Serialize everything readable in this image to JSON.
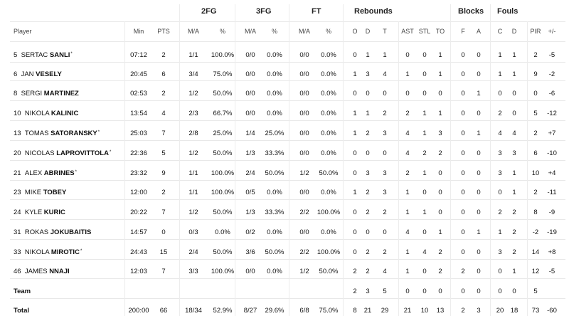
{
  "groups": [
    {
      "id": "2fg",
      "label": "2FG"
    },
    {
      "id": "3fg",
      "label": "3FG"
    },
    {
      "id": "ft",
      "label": "FT"
    },
    {
      "id": "reb",
      "label": "Rebounds"
    },
    {
      "id": "blk",
      "label": "Blocks"
    },
    {
      "id": "fouls",
      "label": "Fouls"
    }
  ],
  "columns": [
    {
      "id": "player",
      "label": "Player"
    },
    {
      "id": "min",
      "label": "Min"
    },
    {
      "id": "pts",
      "label": "PTS"
    },
    {
      "id": "fg2ma",
      "label": "M/A"
    },
    {
      "id": "fg2pct",
      "label": "%"
    },
    {
      "id": "fg3ma",
      "label": "M/A"
    },
    {
      "id": "fg3pct",
      "label": "%"
    },
    {
      "id": "ftma",
      "label": "M/A"
    },
    {
      "id": "ftpct",
      "label": "%"
    },
    {
      "id": "o",
      "label": "O"
    },
    {
      "id": "d",
      "label": "D"
    },
    {
      "id": "t",
      "label": "T"
    },
    {
      "id": "ast",
      "label": "AST"
    },
    {
      "id": "stl",
      "label": "STL"
    },
    {
      "id": "to",
      "label": "TO"
    },
    {
      "id": "bf",
      "label": "F"
    },
    {
      "id": "ba",
      "label": "A"
    },
    {
      "id": "fc",
      "label": "C"
    },
    {
      "id": "fd",
      "label": "D"
    },
    {
      "id": "pir",
      "label": "PIR"
    },
    {
      "id": "pm",
      "label": "+/-"
    }
  ],
  "players": [
    {
      "num": "5",
      "first": "SERTAC",
      "last": "SANLI",
      "starter": "*",
      "cells": [
        "07:12",
        "2",
        "1/1",
        "100.0%",
        "0/0",
        "0.0%",
        "0/0",
        "0.0%",
        "0",
        "1",
        "1",
        "0",
        "0",
        "1",
        "0",
        "0",
        "1",
        "1",
        "2",
        "-5"
      ]
    },
    {
      "num": "6",
      "first": "JAN",
      "last": "VESELY",
      "starter": "",
      "cells": [
        "20:45",
        "6",
        "3/4",
        "75.0%",
        "0/0",
        "0.0%",
        "0/0",
        "0.0%",
        "1",
        "3",
        "4",
        "1",
        "0",
        "1",
        "0",
        "0",
        "1",
        "1",
        "9",
        "-2"
      ]
    },
    {
      "num": "8",
      "first": "SERGI",
      "last": "MARTINEZ",
      "starter": "",
      "cells": [
        "02:53",
        "2",
        "1/2",
        "50.0%",
        "0/0",
        "0.0%",
        "0/0",
        "0.0%",
        "0",
        "0",
        "0",
        "0",
        "0",
        "0",
        "0",
        "1",
        "0",
        "0",
        "0",
        "-6"
      ]
    },
    {
      "num": "10",
      "first": "NIKOLA",
      "last": "KALINIC",
      "starter": "",
      "cells": [
        "13:54",
        "4",
        "2/3",
        "66.7%",
        "0/0",
        "0.0%",
        "0/0",
        "0.0%",
        "1",
        "1",
        "2",
        "2",
        "1",
        "1",
        "0",
        "0",
        "2",
        "0",
        "5",
        "-12"
      ]
    },
    {
      "num": "13",
      "first": "TOMAS",
      "last": "SATORANSKY",
      "starter": "*",
      "cells": [
        "25:03",
        "7",
        "2/8",
        "25.0%",
        "1/4",
        "25.0%",
        "0/0",
        "0.0%",
        "1",
        "2",
        "3",
        "4",
        "1",
        "3",
        "0",
        "1",
        "4",
        "4",
        "2",
        "+7"
      ]
    },
    {
      "num": "20",
      "first": "NICOLAS",
      "last": "LAPROVITTOLA",
      "starter": "*",
      "cells": [
        "22:36",
        "5",
        "1/2",
        "50.0%",
        "1/3",
        "33.3%",
        "0/0",
        "0.0%",
        "0",
        "0",
        "0",
        "4",
        "2",
        "2",
        "0",
        "0",
        "3",
        "3",
        "6",
        "-10"
      ]
    },
    {
      "num": "21",
      "first": "ALEX",
      "last": "ABRINES",
      "starter": "*",
      "cells": [
        "23:32",
        "9",
        "1/1",
        "100.0%",
        "2/4",
        "50.0%",
        "1/2",
        "50.0%",
        "0",
        "3",
        "3",
        "2",
        "1",
        "0",
        "0",
        "0",
        "3",
        "1",
        "10",
        "+4"
      ]
    },
    {
      "num": "23",
      "first": "MIKE",
      "last": "TOBEY",
      "starter": "",
      "cells": [
        "12:00",
        "2",
        "1/1",
        "100.0%",
        "0/5",
        "0.0%",
        "0/0",
        "0.0%",
        "1",
        "2",
        "3",
        "1",
        "0",
        "0",
        "0",
        "0",
        "0",
        "1",
        "2",
        "-11"
      ]
    },
    {
      "num": "24",
      "first": "KYLE",
      "last": "KURIC",
      "starter": "",
      "cells": [
        "20:22",
        "7",
        "1/2",
        "50.0%",
        "1/3",
        "33.3%",
        "2/2",
        "100.0%",
        "0",
        "2",
        "2",
        "1",
        "1",
        "0",
        "0",
        "0",
        "2",
        "2",
        "8",
        "-9"
      ]
    },
    {
      "num": "31",
      "first": "ROKAS",
      "last": "JOKUBAITIS",
      "starter": "",
      "cells": [
        "14:57",
        "0",
        "0/3",
        "0.0%",
        "0/2",
        "0.0%",
        "0/0",
        "0.0%",
        "0",
        "0",
        "0",
        "4",
        "0",
        "1",
        "0",
        "1",
        "1",
        "2",
        "-2",
        "-19"
      ]
    },
    {
      "num": "33",
      "first": "NIKOLA",
      "last": "MIROTIC",
      "starter": "*",
      "cells": [
        "24:43",
        "15",
        "2/4",
        "50.0%",
        "3/6",
        "50.0%",
        "2/2",
        "100.0%",
        "0",
        "2",
        "2",
        "1",
        "4",
        "2",
        "0",
        "0",
        "3",
        "2",
        "14",
        "+8"
      ]
    },
    {
      "num": "46",
      "first": "JAMES",
      "last": "NNAJI",
      "starter": "",
      "cells": [
        "12:03",
        "7",
        "3/3",
        "100.0%",
        "0/0",
        "0.0%",
        "1/2",
        "50.0%",
        "2",
        "2",
        "4",
        "1",
        "0",
        "2",
        "2",
        "0",
        "0",
        "1",
        "12",
        "-5"
      ]
    }
  ],
  "team": {
    "label": "Team",
    "cells": [
      "",
      "",
      "",
      "",
      "",
      "",
      "",
      "",
      "2",
      "3",
      "5",
      "0",
      "0",
      "0",
      "0",
      "0",
      "0",
      "0",
      "5",
      ""
    ]
  },
  "total": {
    "label": "Total",
    "cells": [
      "200:00",
      "66",
      "18/34",
      "52.9%",
      "8/27",
      "29.6%",
      "6/8",
      "75.0%",
      "8",
      "21",
      "29",
      "21",
      "10",
      "13",
      "2",
      "3",
      "20",
      "18",
      "73",
      "-60"
    ]
  }
}
